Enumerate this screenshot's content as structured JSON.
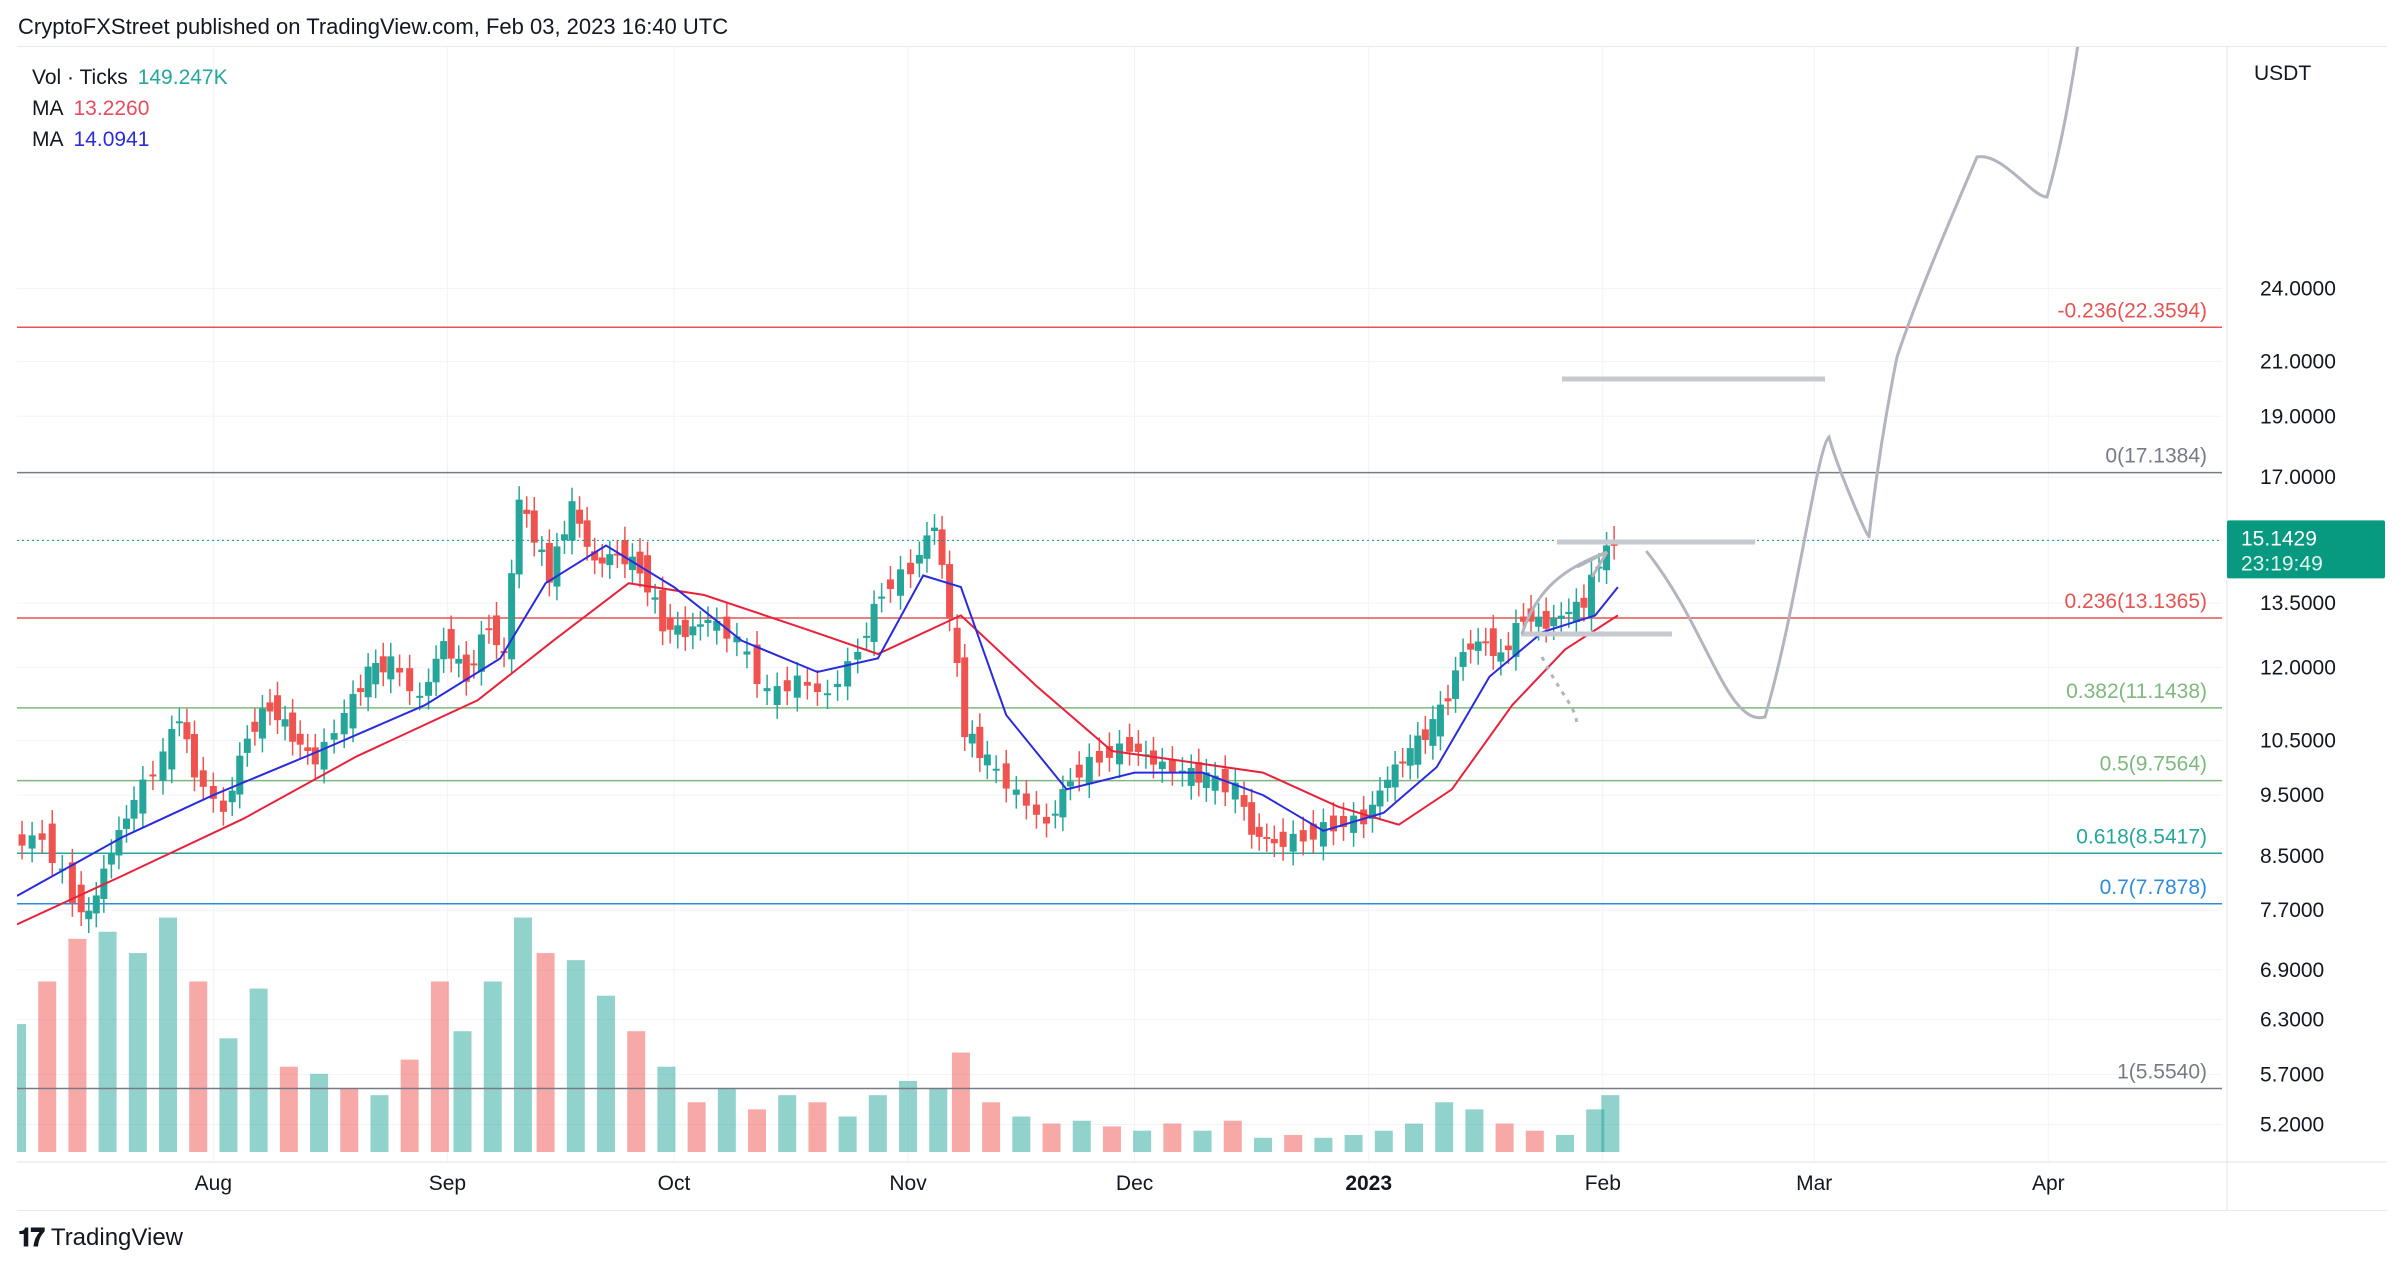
{
  "header": {
    "text": "CryptoFXStreet published on TradingView.com, Feb 03, 2023 16:40 UTC"
  },
  "legend": {
    "vol_label": "Vol · Ticks",
    "vol_value": "149.247K",
    "ma1_label": "MA",
    "ma1_value": "13.2260",
    "ma2_label": "MA",
    "ma2_value": "14.0941"
  },
  "colors": {
    "up": "#26a69a",
    "down": "#ef5350",
    "ma_fast": "#2b2bde",
    "ma_slow": "#e8223b",
    "fib_red": "#e55353",
    "fib_green": "#7fb87f",
    "fib_teal": "#26a69a",
    "fib_blue": "#2e8bdc",
    "fib_grey": "#787b86",
    "price_tag": "#089981"
  },
  "footer": {
    "brand": "TradingView"
  },
  "chart_data": {
    "type": "candlestick",
    "currency": "USDT",
    "scale": "log",
    "ylim": [
      4.9,
      36.0
    ],
    "y_ticks": [
      "24.0000",
      "21.0000",
      "19.0000",
      "17.0000",
      "13.5000",
      "12.0000",
      "10.5000",
      "9.5000",
      "8.5000",
      "7.7000",
      "6.9000",
      "6.3000",
      "5.7000",
      "5.2000"
    ],
    "x_ticks": [
      {
        "label": "Aug",
        "date": "2022-08-01"
      },
      {
        "label": "Sep",
        "date": "2022-09-01"
      },
      {
        "label": "Oct",
        "date": "2022-10-01"
      },
      {
        "label": "Nov",
        "date": "2022-11-01"
      },
      {
        "label": "Dec",
        "date": "2022-12-01"
      },
      {
        "label": "2023",
        "date": "2023-01-01"
      },
      {
        "label": "Feb",
        "date": "2023-02-01"
      },
      {
        "label": "Mar",
        "date": "2023-03-01"
      },
      {
        "label": "Apr",
        "date": "2023-04-01"
      }
    ],
    "x_range": [
      "2022-07-06",
      "2023-04-24"
    ],
    "last_price": {
      "value": "15.1429",
      "countdown": "23:19:49"
    },
    "fib_levels": [
      {
        "label": "-0.236(22.3594)",
        "value": 22.3594,
        "color": "#e55353"
      },
      {
        "label": "0(17.1384)",
        "value": 17.1384,
        "color": "#787b86"
      },
      {
        "label": "0.236(13.1365)",
        "value": 13.1365,
        "color": "#e55353"
      },
      {
        "label": "0.382(11.1438)",
        "value": 11.1438,
        "color": "#7fb87f"
      },
      {
        "label": "0.5(9.7564)",
        "value": 9.7564,
        "color": "#7fb87f"
      },
      {
        "label": "0.618(8.5417)",
        "value": 8.5417,
        "color": "#26a69a"
      },
      {
        "label": "0.7(7.7878)",
        "value": 7.7878,
        "color": "#2e8bdc"
      },
      {
        "label": "1(5.5540)",
        "value": 5.554,
        "color": "#787b86"
      }
    ],
    "close_path": [
      [
        "2022-07-06",
        8.7
      ],
      [
        "2022-07-10",
        8.8
      ],
      [
        "2022-07-14",
        7.9
      ],
      [
        "2022-07-16",
        7.6
      ],
      [
        "2022-07-19",
        8.6
      ],
      [
        "2022-07-22",
        9.4
      ],
      [
        "2022-07-26",
        10.2
      ],
      [
        "2022-07-28",
        11.0
      ],
      [
        "2022-07-30",
        9.9
      ],
      [
        "2022-08-03",
        9.2
      ],
      [
        "2022-08-06",
        10.6
      ],
      [
        "2022-08-09",
        11.2
      ],
      [
        "2022-08-12",
        10.6
      ],
      [
        "2022-08-15",
        10.1
      ],
      [
        "2022-08-19",
        11.0
      ],
      [
        "2022-08-22",
        11.9
      ],
      [
        "2022-08-25",
        12.1
      ],
      [
        "2022-08-29",
        11.3
      ],
      [
        "2022-09-01",
        12.6
      ],
      [
        "2022-09-04",
        11.8
      ],
      [
        "2022-09-07",
        13.0
      ],
      [
        "2022-09-09",
        12.2
      ],
      [
        "2022-09-11",
        16.3
      ],
      [
        "2022-09-13",
        15.2
      ],
      [
        "2022-09-15",
        14.2
      ],
      [
        "2022-09-18",
        16.1
      ],
      [
        "2022-09-21",
        14.5
      ],
      [
        "2022-09-24",
        14.8
      ],
      [
        "2022-09-27",
        14.4
      ],
      [
        "2022-09-30",
        13.0
      ],
      [
        "2022-10-03",
        12.8
      ],
      [
        "2022-10-06",
        13.1
      ],
      [
        "2022-10-10",
        12.6
      ],
      [
        "2022-10-14",
        11.4
      ],
      [
        "2022-10-18",
        11.7
      ],
      [
        "2022-10-22",
        11.4
      ],
      [
        "2022-10-26",
        12.4
      ],
      [
        "2022-10-29",
        13.8
      ],
      [
        "2022-11-02",
        14.4
      ],
      [
        "2022-11-05",
        15.6
      ],
      [
        "2022-11-07",
        13.2
      ],
      [
        "2022-11-09",
        10.7
      ],
      [
        "2022-11-12",
        10.1
      ],
      [
        "2022-11-16",
        9.5
      ],
      [
        "2022-11-20",
        9.0
      ],
      [
        "2022-11-23",
        9.8
      ],
      [
        "2022-11-27",
        10.2
      ],
      [
        "2022-12-01",
        10.4
      ],
      [
        "2022-12-04",
        10.1
      ],
      [
        "2022-12-08",
        9.9
      ],
      [
        "2022-12-11",
        9.8
      ],
      [
        "2022-12-15",
        9.6
      ],
      [
        "2022-12-17",
        8.9
      ],
      [
        "2022-12-20",
        8.7
      ],
      [
        "2022-12-24",
        8.8
      ],
      [
        "2022-12-28",
        9.0
      ],
      [
        "2023-01-01",
        9.1
      ],
      [
        "2023-01-04",
        9.8
      ],
      [
        "2023-01-07",
        10.3
      ],
      [
        "2023-01-10",
        10.8
      ],
      [
        "2023-01-12",
        11.4
      ],
      [
        "2023-01-14",
        12.4
      ],
      [
        "2023-01-17",
        12.6
      ],
      [
        "2023-01-19",
        12.2
      ],
      [
        "2023-01-22",
        13.2
      ],
      [
        "2023-01-25",
        13.0
      ],
      [
        "2023-01-28",
        13.3
      ],
      [
        "2023-01-30",
        13.5
      ],
      [
        "2023-02-01",
        14.6
      ],
      [
        "2023-02-03",
        15.14
      ]
    ],
    "ma_fast": [
      [
        "2022-07-06",
        7.9
      ],
      [
        "2022-07-20",
        8.8
      ],
      [
        "2022-08-01",
        9.5
      ],
      [
        "2022-08-15",
        10.3
      ],
      [
        "2022-08-29",
        11.2
      ],
      [
        "2022-09-08",
        12.2
      ],
      [
        "2022-09-14",
        14.0
      ],
      [
        "2022-09-22",
        15.0
      ],
      [
        "2022-10-01",
        13.9
      ],
      [
        "2022-10-10",
        12.6
      ],
      [
        "2022-10-20",
        11.9
      ],
      [
        "2022-10-28",
        12.2
      ],
      [
        "2022-11-03",
        14.2
      ],
      [
        "2022-11-08",
        13.9
      ],
      [
        "2022-11-14",
        11.0
      ],
      [
        "2022-11-22",
        9.6
      ],
      [
        "2022-12-01",
        9.9
      ],
      [
        "2022-12-10",
        9.9
      ],
      [
        "2022-12-18",
        9.5
      ],
      [
        "2022-12-26",
        8.9
      ],
      [
        "2023-01-03",
        9.2
      ],
      [
        "2023-01-10",
        10.0
      ],
      [
        "2023-01-17",
        11.8
      ],
      [
        "2023-01-24",
        12.8
      ],
      [
        "2023-01-31",
        13.2
      ],
      [
        "2023-02-03",
        13.9
      ]
    ],
    "ma_slow": [
      [
        "2022-07-06",
        7.5
      ],
      [
        "2022-07-20",
        8.2
      ],
      [
        "2022-08-05",
        9.1
      ],
      [
        "2022-08-20",
        10.2
      ],
      [
        "2022-09-05",
        11.3
      ],
      [
        "2022-09-15",
        12.6
      ],
      [
        "2022-09-25",
        14.0
      ],
      [
        "2022-10-05",
        13.7
      ],
      [
        "2022-10-18",
        12.9
      ],
      [
        "2022-10-28",
        12.3
      ],
      [
        "2022-11-08",
        13.2
      ],
      [
        "2022-11-18",
        11.6
      ],
      [
        "2022-11-28",
        10.3
      ],
      [
        "2022-12-08",
        10.1
      ],
      [
        "2022-12-18",
        9.9
      ],
      [
        "2022-12-28",
        9.3
      ],
      [
        "2023-01-05",
        9.0
      ],
      [
        "2023-01-12",
        9.6
      ],
      [
        "2023-01-20",
        11.2
      ],
      [
        "2023-01-27",
        12.4
      ],
      [
        "2023-02-03",
        13.2
      ]
    ],
    "volume_range": [
      0,
      190000
    ],
    "volume": [
      {
        "date": "2022-07-06",
        "value": 90000,
        "up": true
      },
      {
        "date": "2022-07-10",
        "value": 120000,
        "up": false
      },
      {
        "date": "2022-07-14",
        "value": 150000,
        "up": false
      },
      {
        "date": "2022-07-18",
        "value": 155000,
        "up": true
      },
      {
        "date": "2022-07-22",
        "value": 140000,
        "up": true
      },
      {
        "date": "2022-07-26",
        "value": 165000,
        "up": true
      },
      {
        "date": "2022-07-30",
        "value": 120000,
        "up": false
      },
      {
        "date": "2022-08-03",
        "value": 80000,
        "up": true
      },
      {
        "date": "2022-08-07",
        "value": 115000,
        "up": true
      },
      {
        "date": "2022-08-11",
        "value": 60000,
        "up": false
      },
      {
        "date": "2022-08-15",
        "value": 55000,
        "up": true
      },
      {
        "date": "2022-08-19",
        "value": 45000,
        "up": false
      },
      {
        "date": "2022-08-23",
        "value": 40000,
        "up": true
      },
      {
        "date": "2022-08-27",
        "value": 65000,
        "up": false
      },
      {
        "date": "2022-08-31",
        "value": 120000,
        "up": false
      },
      {
        "date": "2022-09-03",
        "value": 85000,
        "up": true
      },
      {
        "date": "2022-09-07",
        "value": 120000,
        "up": true
      },
      {
        "date": "2022-09-11",
        "value": 165000,
        "up": true
      },
      {
        "date": "2022-09-14",
        "value": 140000,
        "up": false
      },
      {
        "date": "2022-09-18",
        "value": 135000,
        "up": true
      },
      {
        "date": "2022-09-22",
        "value": 110000,
        "up": true
      },
      {
        "date": "2022-09-26",
        "value": 85000,
        "up": false
      },
      {
        "date": "2022-09-30",
        "value": 60000,
        "up": true
      },
      {
        "date": "2022-10-04",
        "value": 35000,
        "up": false
      },
      {
        "date": "2022-10-08",
        "value": 45000,
        "up": true
      },
      {
        "date": "2022-10-12",
        "value": 30000,
        "up": false
      },
      {
        "date": "2022-10-16",
        "value": 40000,
        "up": true
      },
      {
        "date": "2022-10-20",
        "value": 35000,
        "up": false
      },
      {
        "date": "2022-10-24",
        "value": 25000,
        "up": true
      },
      {
        "date": "2022-10-28",
        "value": 40000,
        "up": true
      },
      {
        "date": "2022-11-01",
        "value": 50000,
        "up": true
      },
      {
        "date": "2022-11-05",
        "value": 45000,
        "up": true
      },
      {
        "date": "2022-11-08",
        "value": 70000,
        "up": false
      },
      {
        "date": "2022-11-12",
        "value": 35000,
        "up": false
      },
      {
        "date": "2022-11-16",
        "value": 25000,
        "up": true
      },
      {
        "date": "2022-11-20",
        "value": 20000,
        "up": false
      },
      {
        "date": "2022-11-24",
        "value": 22000,
        "up": true
      },
      {
        "date": "2022-11-28",
        "value": 18000,
        "up": false
      },
      {
        "date": "2022-12-02",
        "value": 15000,
        "up": true
      },
      {
        "date": "2022-12-06",
        "value": 20000,
        "up": false
      },
      {
        "date": "2022-12-10",
        "value": 15000,
        "up": true
      },
      {
        "date": "2022-12-14",
        "value": 22000,
        "up": false
      },
      {
        "date": "2022-12-18",
        "value": 10000,
        "up": true
      },
      {
        "date": "2022-12-22",
        "value": 12000,
        "up": false
      },
      {
        "date": "2022-12-26",
        "value": 10000,
        "up": true
      },
      {
        "date": "2022-12-30",
        "value": 12000,
        "up": true
      },
      {
        "date": "2023-01-03",
        "value": 15000,
        "up": true
      },
      {
        "date": "2023-01-07",
        "value": 20000,
        "up": true
      },
      {
        "date": "2023-01-11",
        "value": 35000,
        "up": true
      },
      {
        "date": "2023-01-15",
        "value": 30000,
        "up": true
      },
      {
        "date": "2023-01-19",
        "value": 20000,
        "up": false
      },
      {
        "date": "2023-01-23",
        "value": 15000,
        "up": false
      },
      {
        "date": "2023-01-27",
        "value": 12000,
        "up": true
      },
      {
        "date": "2023-01-31",
        "value": 30000,
        "up": true
      },
      {
        "date": "2023-02-02",
        "value": 40000,
        "up": true
      }
    ]
  }
}
